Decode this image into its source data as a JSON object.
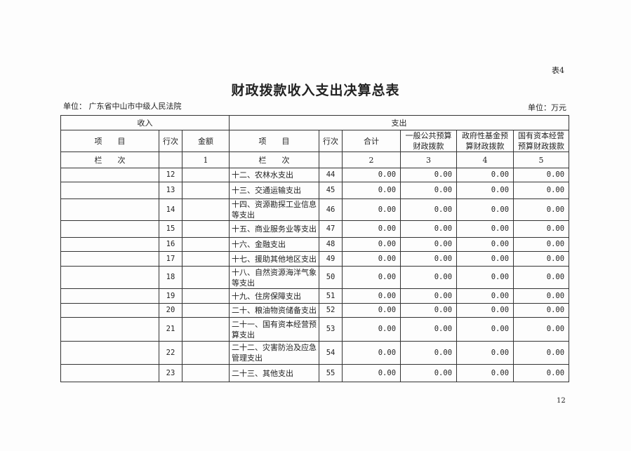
{
  "table_no": "表4",
  "title": "财政拨款收入支出决算总表",
  "unit_org": "单位：  广东省中山市中级人民法院",
  "unit_currency": "单位：万元",
  "header": {
    "income": "收入",
    "expense": "支出",
    "item": "项　　目",
    "line": "行次",
    "amount": "金额",
    "total": "合计",
    "general": "一般公共预算财政拨款",
    "fund": "政府性基金预算财政拨款",
    "state": "国有资本经营预算财政拨款",
    "col_label": "栏　　次",
    "c1": "1",
    "c2": "2",
    "c3": "3",
    "c4": "4",
    "c5": "5"
  },
  "rows": [
    {
      "in_line": "12",
      "item": "十二、农林水支出",
      "line": "44",
      "total": "0.00",
      "general": "0.00",
      "fund": "0.00",
      "state": "0.00"
    },
    {
      "in_line": "13",
      "item": "十三、交通运输支出",
      "line": "45",
      "total": "0.00",
      "general": "0.00",
      "fund": "0.00",
      "state": "0.00"
    },
    {
      "in_line": "14",
      "item": "十四、资源勘探工业信息等支出",
      "line": "46",
      "total": "0.00",
      "general": "0.00",
      "fund": "0.00",
      "state": "0.00"
    },
    {
      "in_line": "15",
      "item": "十五、商业服务业等支出",
      "line": "47",
      "total": "0.00",
      "general": "0.00",
      "fund": "0.00",
      "state": "0.00"
    },
    {
      "in_line": "16",
      "item": "十六、金融支出",
      "line": "48",
      "total": "0.00",
      "general": "0.00",
      "fund": "0.00",
      "state": "0.00"
    },
    {
      "in_line": "17",
      "item": "十七、援助其他地区支出",
      "line": "49",
      "total": "0.00",
      "general": "0.00",
      "fund": "0.00",
      "state": "0.00"
    },
    {
      "in_line": "18",
      "item": "十八、自然资源海洋气象等支出",
      "line": "50",
      "total": "0.00",
      "general": "0.00",
      "fund": "0.00",
      "state": "0.00"
    },
    {
      "in_line": "19",
      "item": "十九、住房保障支出",
      "line": "51",
      "total": "0.00",
      "general": "0.00",
      "fund": "0.00",
      "state": "0.00"
    },
    {
      "in_line": "20",
      "item": "二十、粮油物资储备支出",
      "line": "52",
      "total": "0.00",
      "general": "0.00",
      "fund": "0.00",
      "state": "0.00"
    },
    {
      "in_line": "21",
      "item": "二十一、国有资本经营预算支出",
      "line": "53",
      "total": "0.00",
      "general": "0.00",
      "fund": "0.00",
      "state": "0.00"
    },
    {
      "in_line": "22",
      "item": "二十二、灾害防治及应急管理支出",
      "line": "54",
      "total": "0.00",
      "general": "0.00",
      "fund": "0.00",
      "state": "0.00"
    },
    {
      "in_line": "23",
      "item": "二十三、其他支出",
      "line": "55",
      "total": "0.00",
      "general": "0.00",
      "fund": "0.00",
      "state": "0.00"
    }
  ],
  "page_number": "12"
}
